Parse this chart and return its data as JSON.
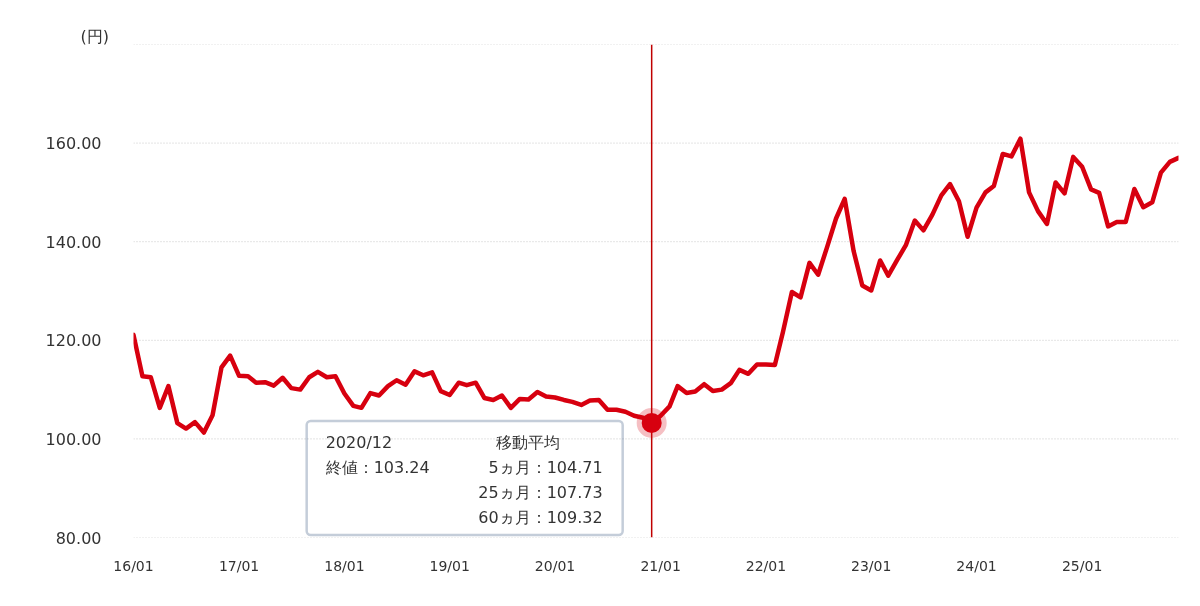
{
  "chart_data": {
    "type": "line",
    "ylabel": "(円)",
    "x": [
      "2016-01",
      "2016-02",
      "2016-03",
      "2016-04",
      "2016-05",
      "2016-06",
      "2016-07",
      "2016-08",
      "2016-09",
      "2016-10",
      "2016-11",
      "2016-12",
      "2017-01",
      "2017-02",
      "2017-03",
      "2017-04",
      "2017-05",
      "2017-06",
      "2017-07",
      "2017-08",
      "2017-09",
      "2017-10",
      "2017-11",
      "2017-12",
      "2018-01",
      "2018-02",
      "2018-03",
      "2018-04",
      "2018-05",
      "2018-06",
      "2018-07",
      "2018-08",
      "2018-09",
      "2018-10",
      "2018-11",
      "2018-12",
      "2019-01",
      "2019-02",
      "2019-03",
      "2019-04",
      "2019-05",
      "2019-06",
      "2019-07",
      "2019-08",
      "2019-09",
      "2019-10",
      "2019-11",
      "2019-12",
      "2020-01",
      "2020-02",
      "2020-03",
      "2020-04",
      "2020-05",
      "2020-06",
      "2020-07",
      "2020-08",
      "2020-09",
      "2020-10",
      "2020-11",
      "2020-12",
      "2021-01",
      "2021-02",
      "2021-03",
      "2021-04",
      "2021-05",
      "2021-06",
      "2021-07",
      "2021-08",
      "2021-09",
      "2021-10",
      "2021-11",
      "2021-12",
      "2022-01",
      "2022-02",
      "2022-03",
      "2022-04",
      "2022-05",
      "2022-06",
      "2022-07",
      "2022-08",
      "2022-09",
      "2022-10",
      "2022-11",
      "2022-12",
      "2023-01",
      "2023-02",
      "2023-03",
      "2023-04",
      "2023-05",
      "2023-06",
      "2023-07",
      "2023-08",
      "2023-09",
      "2023-10",
      "2023-11",
      "2023-12",
      "2024-01",
      "2024-02",
      "2024-03",
      "2024-04",
      "2024-05",
      "2024-06",
      "2024-07",
      "2024-08",
      "2024-09",
      "2024-10",
      "2024-11",
      "2024-12",
      "2025-01",
      "2025-02",
      "2025-03",
      "2025-04",
      "2025-05",
      "2025-06",
      "2025-07",
      "2025-08",
      "2025-09",
      "2025-10",
      "2025-11",
      "2025-12"
    ],
    "series": [
      {
        "color": "#d7000f",
        "values": [
          121.1,
          112.7,
          112.5,
          106.3,
          110.7,
          103.2,
          102.1,
          103.4,
          101.3,
          104.8,
          114.5,
          116.9,
          112.8,
          112.7,
          111.4,
          111.5,
          110.8,
          112.4,
          110.3,
          110.0,
          112.5,
          113.6,
          112.5,
          112.7,
          109.2,
          106.7,
          106.3,
          109.3,
          108.8,
          110.7,
          111.9,
          111.0,
          113.7,
          112.9,
          113.5,
          109.7,
          108.9,
          111.4,
          110.9,
          111.4,
          108.3,
          107.9,
          108.8,
          106.3,
          108.1,
          108.0,
          109.5,
          108.6,
          108.4,
          107.9,
          107.5,
          106.9,
          107.8,
          107.9,
          105.9,
          105.9,
          105.5,
          104.7,
          104.3,
          103.24,
          104.7,
          106.6,
          110.7,
          109.3,
          109.6,
          111.1,
          109.7,
          110.0,
          111.3,
          114.0,
          113.2,
          115.1,
          115.1,
          115.0,
          121.7,
          129.8,
          128.7,
          135.7,
          133.3,
          138.9,
          144.7,
          148.7,
          138.1,
          131.1,
          130.1,
          136.2,
          133.1,
          136.3,
          139.3,
          144.3,
          142.3,
          145.5,
          149.4,
          151.7,
          148.2,
          141.0,
          146.9,
          150.0,
          151.3,
          157.8,
          157.3,
          160.9,
          150.0,
          146.2,
          143.6,
          152.0,
          149.8,
          157.2,
          155.2,
          150.6,
          149.9,
          143.1,
          144.0,
          144.0,
          150.7,
          147.0,
          148.0,
          154.0,
          156.2,
          157.0
        ]
      },
      {
        "type": "scatter",
        "marker": "circle",
        "x": [
          "2020-12"
        ],
        "color": "#d7000f",
        "values": [
          103.24
        ]
      }
    ],
    "xlim": [
      "2016-01",
      "2025-12"
    ],
    "xticks": [
      {
        "value": "2016-01",
        "label": "16/01"
      },
      {
        "value": "2017-01",
        "label": "17/01"
      },
      {
        "value": "2018-01",
        "label": "18/01"
      },
      {
        "value": "2019-01",
        "label": "19/01"
      },
      {
        "value": "2020-01",
        "label": "20/01"
      },
      {
        "value": "2021-01",
        "label": "21/01"
      },
      {
        "value": "2022-01",
        "label": "22/01"
      },
      {
        "value": "2023-01",
        "label": "23/01"
      },
      {
        "value": "2024-01",
        "label": "24/01"
      },
      {
        "value": "2025-01",
        "label": "25/01"
      }
    ],
    "ylim": [
      80,
      180
    ],
    "yticks": [
      {
        "value": 80,
        "label": "80.00"
      },
      {
        "value": 100,
        "label": "100.00"
      },
      {
        "value": 120,
        "label": "120.00"
      },
      {
        "value": 140,
        "label": "140.00"
      },
      {
        "value": 160,
        "label": "160.00"
      },
      {
        "value": 180,
        "label": null
      }
    ],
    "grid": "y",
    "ref_lines": [
      {
        "axis": "x",
        "value": "2020-12",
        "color": "#c00000"
      }
    ],
    "annotations": [
      "2020/12",
      "終値：103.24",
      "移動平均",
      "5ヵ月：104.71",
      "25ヵ月：107.73",
      "60ヵ月：109.32"
    ]
  }
}
